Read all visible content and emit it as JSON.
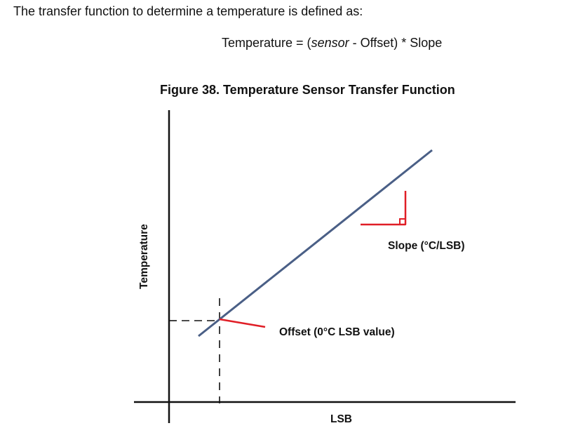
{
  "intro_text": "The transfer function to determine a temperature is defined as:",
  "formula": {
    "lhs": "Temperature = (",
    "variable": "sensor",
    "rhs": " - Offset) * Slope"
  },
  "figure": {
    "title": "Figure 38. Temperature Sensor Transfer Function",
    "y_axis_label": "Temperature",
    "x_axis_label": "LSB",
    "slope_label": "Slope (°C/LSB)",
    "offset_label": "Offset (0°C LSB value)"
  },
  "colors": {
    "transfer_line": "#4a5f86",
    "annotation": "#e01e26",
    "axis": "#111111"
  }
}
